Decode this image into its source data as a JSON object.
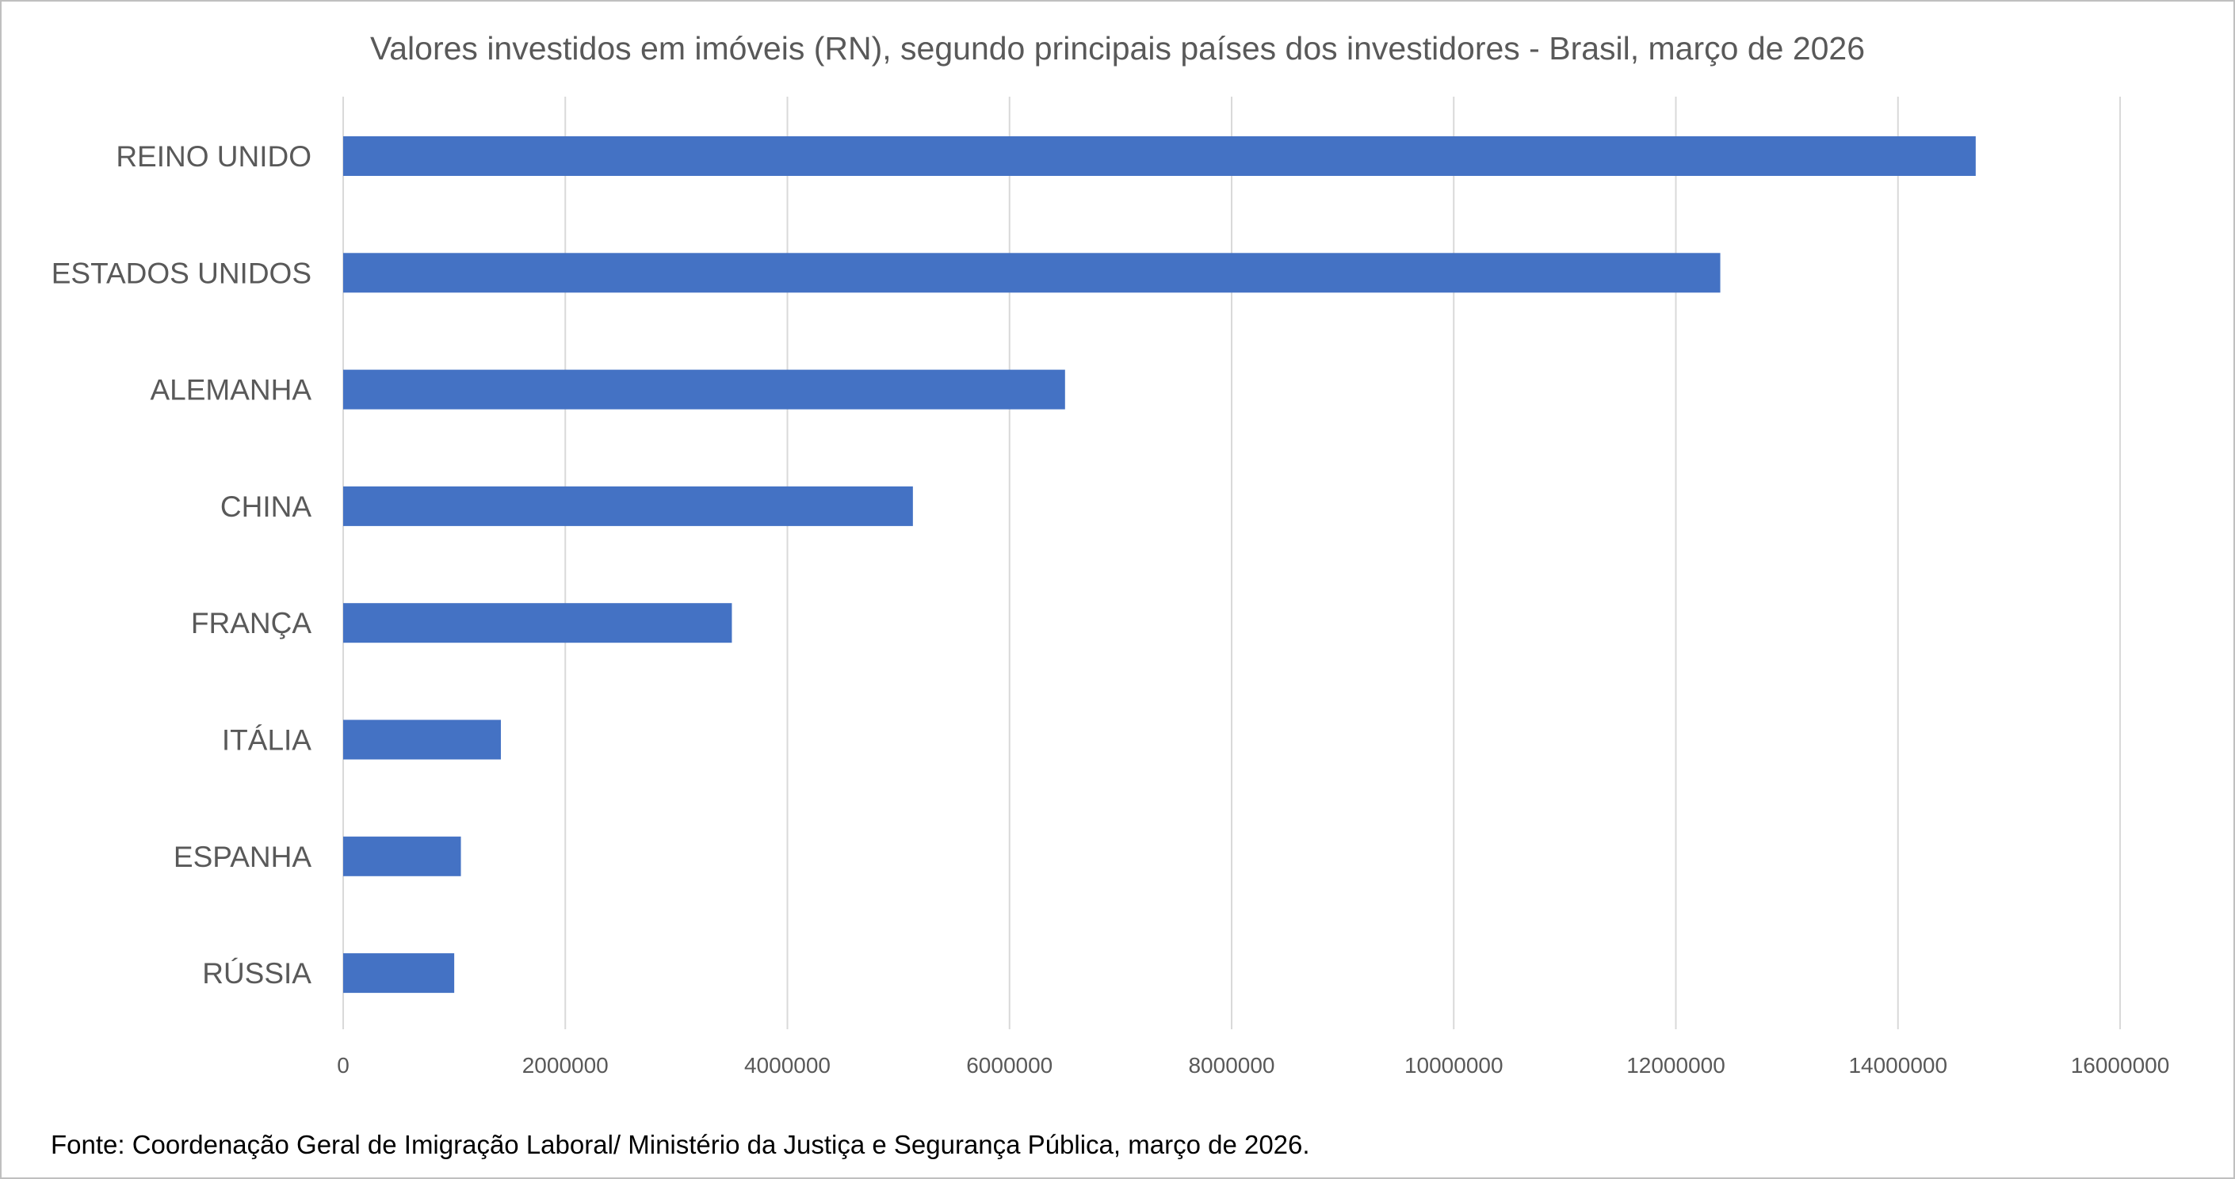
{
  "chart_data": {
    "type": "bar",
    "orientation": "horizontal",
    "title": "Valores investidos em imóveis (RN), segundo principais países dos investidores - Brasil, março de 2026",
    "categories": [
      "REINO UNIDO",
      "ESTADOS UNIDOS",
      "ALEMANHA",
      "CHINA",
      "FRANÇA",
      "ITÁLIA",
      "ESPANHA",
      "RÚSSIA"
    ],
    "series": [
      {
        "name": "Valores investidos",
        "values": [
          14700000,
          12400000,
          6500000,
          5130000,
          3500000,
          1420000,
          1060000,
          1000000
        ]
      }
    ],
    "xlim": [
      0,
      16000000
    ],
    "xticks": [
      0,
      2000000,
      4000000,
      6000000,
      8000000,
      10000000,
      12000000,
      14000000,
      16000000
    ],
    "xtick_labels": [
      "0",
      "2000000",
      "4000000",
      "6000000",
      "8000000",
      "10000000",
      "12000000",
      "14000000",
      "16000000"
    ],
    "xlabel": "",
    "ylabel": "",
    "grid": "vertical",
    "legend": "none",
    "bar_color": "#4472C4",
    "grid_color": "#d9d9d9"
  },
  "source": "Fonte: Coordenação Geral de Imigração Laboral/ Ministério da Justiça e Segurança Pública,  março de 2026."
}
